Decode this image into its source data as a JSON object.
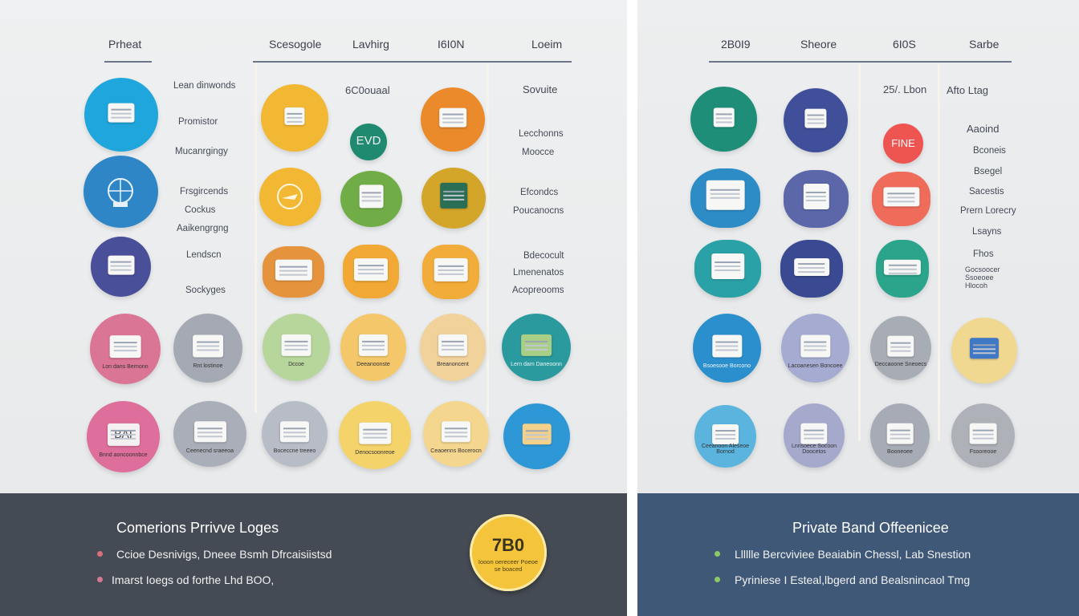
{
  "left": {
    "headers": [
      "Prheat",
      "Scesogole",
      "Lavhirg",
      "I6I0N",
      "Loeim"
    ],
    "col1_labels": [
      "Lean dinwonds",
      "Promistor",
      "Mucanrgingy",
      "Frsgircends",
      "Cockus",
      "Aaikengrgng",
      "Lendscn",
      "Sockyges"
    ],
    "top_label": "6C0ouaal",
    "badge_text": "EVD",
    "right_labels": [
      "Sovuite",
      "Lecchonns",
      "Moocce",
      "Efcondcs",
      "Poucanocns",
      "Bdecocult",
      "Lmenenatos",
      "Acopreooms"
    ],
    "row4_captions": [
      "Lon dans Bernonn",
      "Rnt lostinoe",
      "Dccoe",
      "Deeanoonste",
      "Breanoncent",
      "Lern dam Daneoonn"
    ],
    "row5_captions": [
      "Bnnd aoncoonnbce",
      "Ceenecnd sraeeoa",
      "Boceccne treeeo",
      "Denocsoonreoe",
      "Ceaoenns Bocerocn",
      ""
    ],
    "bai_text": "BAI",
    "footer": {
      "title": "Comerions Prrivve Loges",
      "bullets": [
        "Ccioe Desnivigs, Dneee Bsmh Dfrcaisiistsd",
        "Imarst Ioegs od forthe Lhd BOO,"
      ],
      "badge_number": "7B0",
      "badge_sub": "Iooon oereceer Poeoe se boaced"
    }
  },
  "right": {
    "headers": [
      "2B0I9",
      "Sheore",
      "6I0S",
      "Sarbe"
    ],
    "mid_label": "25/. Lbon",
    "badge_text": "FINE",
    "right_labels": [
      "Afto Ltag",
      "Aaoind",
      "Bconeis",
      "Bsegel",
      "Sacestis",
      "Prern Lorecry",
      "Lsayns",
      "Fhos",
      "Gocsoocer Ssoeoee Hlocoh"
    ],
    "row4_captions": [
      "Bsoesooe Borcono",
      "Lacoanesen Boncoee",
      "Deccaoone Sneoecs",
      ""
    ],
    "row5_captions": [
      "Ceeanoon Aleseoe Bornod",
      "Lnnsoece Socoon Doocetos",
      "Booneoee",
      "Fsooreooe"
    ],
    "footer": {
      "title": "Private Band Offeenicee",
      "bullets": [
        "Lllllle Bercviviee Beaiabin Chessl, Lab Snestion",
        "Pyriniese I Esteal,lbgerd and Bealsnincaol Tmg"
      ]
    }
  },
  "colors": {
    "left_footer": "#454b54",
    "right_footer": "#3f5877",
    "bullet_red": "#d8707a",
    "bullet_green": "#8cc864",
    "gold": "#f4c43a"
  }
}
